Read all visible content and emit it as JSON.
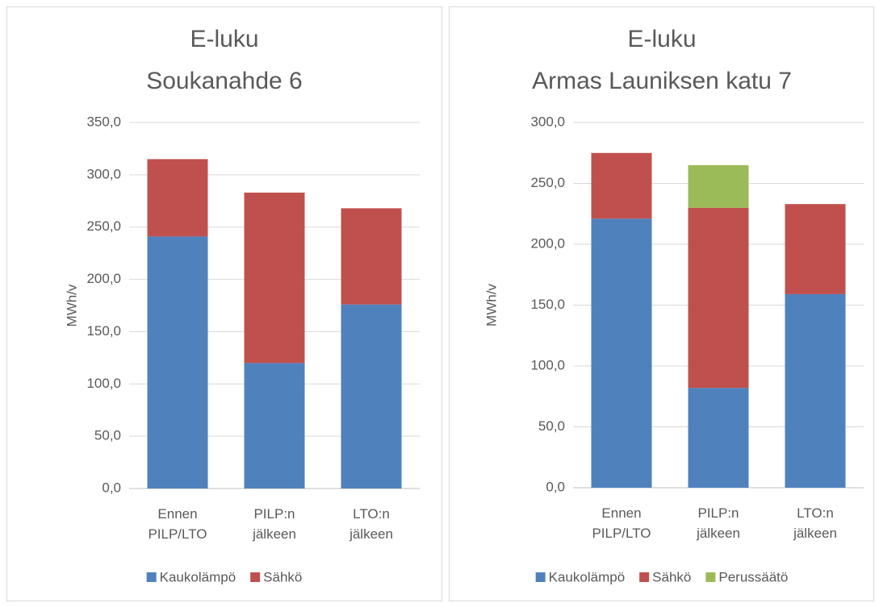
{
  "chart_data": [
    {
      "type": "bar",
      "stacked": true,
      "title": [
        "E-luku",
        "Soukanahde 6"
      ],
      "ylabel": "MWh/v",
      "categories": [
        "Ennen PILP/LTO",
        "PILP:n jälkeen",
        "LTO:n jälkeen"
      ],
      "series": [
        {
          "name": "Kaukolämpö",
          "color": "#4f81bd",
          "values": [
            241,
            120,
            176
          ]
        },
        {
          "name": "Sähkö",
          "color": "#c0504d",
          "values": [
            74,
            163,
            92
          ]
        }
      ],
      "ylim": [
        0,
        350
      ],
      "yticks": [
        {
          "value": 0,
          "label": "0,0"
        },
        {
          "value": 50,
          "label": "50,0"
        },
        {
          "value": 100,
          "label": "100,0"
        },
        {
          "value": 150,
          "label": "150,0"
        },
        {
          "value": 200,
          "label": "200,0"
        },
        {
          "value": 250,
          "label": "250,0"
        },
        {
          "value": 300,
          "label": "300,0"
        },
        {
          "value": 350,
          "label": "350,0"
        }
      ],
      "grid": true,
      "legend": "bottom"
    },
    {
      "type": "bar",
      "stacked": true,
      "title": [
        "E-luku",
        "Armas Launiksen katu 7"
      ],
      "ylabel": "MWh/v",
      "categories": [
        "Ennen PILP/LTO",
        "PILP:n jälkeen",
        "LTO:n jälkeen"
      ],
      "series": [
        {
          "name": "Kaukolämpö",
          "color": "#4f81bd",
          "values": [
            221,
            82,
            159
          ]
        },
        {
          "name": "Sähkö",
          "color": "#c0504d",
          "values": [
            54,
            148,
            74
          ]
        },
        {
          "name": "Perussäätö",
          "color": "#9bbb59",
          "values": [
            0,
            35,
            0
          ]
        }
      ],
      "ylim": [
        0,
        300
      ],
      "yticks": [
        {
          "value": 0,
          "label": "0,0"
        },
        {
          "value": 50,
          "label": "50,0"
        },
        {
          "value": 100,
          "label": "100,0"
        },
        {
          "value": 150,
          "label": "150,0"
        },
        {
          "value": 200,
          "label": "200,0"
        },
        {
          "value": 250,
          "label": "250,0"
        },
        {
          "value": 300,
          "label": "300,0"
        }
      ],
      "grid": true,
      "legend": "bottom"
    }
  ]
}
